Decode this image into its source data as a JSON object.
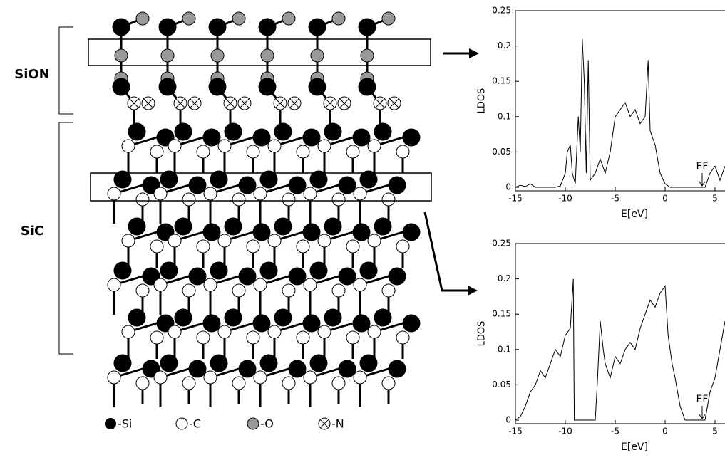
{
  "labels": {
    "sion": "SiON",
    "sic": "SiC"
  },
  "legend": [
    "-Si",
    "-C",
    "-O",
    "-N"
  ],
  "chart_data": [
    {
      "type": "line",
      "x_label": "E[eV]",
      "y_label": "LDOS",
      "annotation": "EF",
      "color": "#000000",
      "x": [
        -15,
        -14.5,
        -14,
        -13.5,
        -13,
        -12,
        -11,
        -10.5,
        -10,
        -9.8,
        -9.5,
        -9.3,
        -9,
        -8.7,
        -8.5,
        -8.3,
        -8.1,
        -7.9,
        -7.7,
        -7.5,
        -7,
        -6.5,
        -6,
        -5.5,
        -5,
        -4.5,
        -4,
        -3.5,
        -3,
        -2.5,
        -2,
        -1.7,
        -1.5,
        -1,
        -0.5,
        0,
        0.5,
        1,
        2,
        3,
        4,
        4.5,
        5,
        5.5,
        6
      ],
      "values": [
        0,
        0.003,
        0.001,
        0.005,
        0,
        0,
        0,
        0.002,
        0.02,
        0.05,
        0.06,
        0.02,
        0.005,
        0.1,
        0.05,
        0.21,
        0.15,
        0.02,
        0.18,
        0.01,
        0.02,
        0.04,
        0.02,
        0.05,
        0.1,
        0.11,
        0.12,
        0.1,
        0.11,
        0.09,
        0.1,
        0.18,
        0.08,
        0.06,
        0.02,
        0.005,
        0,
        0,
        0,
        0,
        0,
        0.02,
        0.03,
        0.01,
        0.03
      ],
      "xlim": [
        -15,
        6
      ],
      "ylim": [
        -0.005,
        0.25
      ],
      "xticks": [
        -15,
        -10,
        -5,
        0,
        5
      ],
      "yticks": [
        0,
        0.05,
        0.1,
        0.15,
        0.2,
        0.25
      ]
    },
    {
      "type": "line",
      "x_label": "E[eV]",
      "y_label": "LDOS",
      "annotation": "EF",
      "color": "#000000",
      "x": [
        -15,
        -14.5,
        -14,
        -13.5,
        -13,
        -12.5,
        -12,
        -11.5,
        -11,
        -10.5,
        -10,
        -9.5,
        -9.2,
        -9.1,
        -8,
        -7,
        -6.8,
        -6.5,
        -6.2,
        -6,
        -5.5,
        -5,
        -4.5,
        -4,
        -3.5,
        -3,
        -2.5,
        -2,
        -1.5,
        -1,
        -0.5,
        0,
        0.3,
        0.7,
        1,
        1.5,
        2,
        3,
        4,
        4.5,
        5,
        5.5,
        6
      ],
      "values": [
        0,
        0.005,
        0.02,
        0.04,
        0.05,
        0.07,
        0.06,
        0.08,
        0.1,
        0.09,
        0.12,
        0.13,
        0.2,
        0,
        0,
        0,
        0.05,
        0.14,
        0.1,
        0.08,
        0.06,
        0.09,
        0.08,
        0.1,
        0.11,
        0.1,
        0.13,
        0.15,
        0.17,
        0.16,
        0.18,
        0.19,
        0.12,
        0.08,
        0.06,
        0.02,
        0,
        0,
        0,
        0.04,
        0.06,
        0.1,
        0.14
      ],
      "xlim": [
        -15,
        6
      ],
      "ylim": [
        -0.005,
        0.25
      ],
      "xticks": [
        -15,
        -10,
        -5,
        0,
        5
      ],
      "yticks": [
        0,
        0.05,
        0.1,
        0.15,
        0.2,
        0.25
      ]
    }
  ]
}
